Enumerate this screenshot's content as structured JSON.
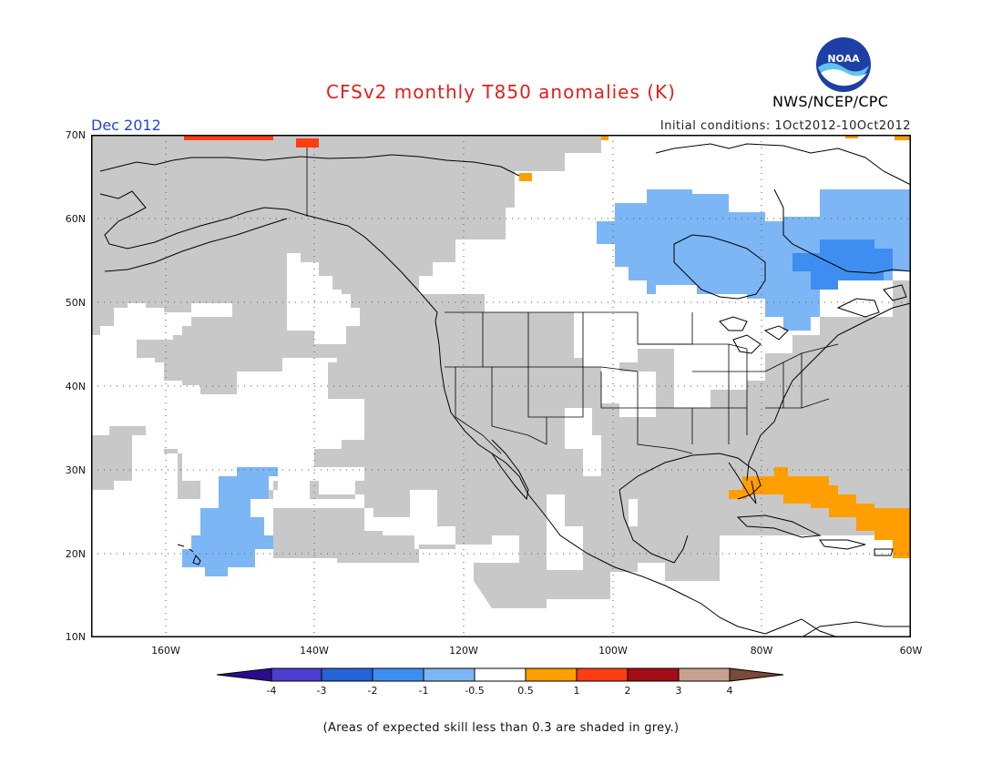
{
  "header": {
    "title": "CFSv2 monthly T850 anomalies (K)",
    "month": "Dec 2012",
    "initial_conditions": "Initial conditions: 1Oct2012-10Oct2012",
    "agency": "NWS/NCEP/CPC",
    "logo_text": "NOAA"
  },
  "axes": {
    "lat_labels": [
      "70N",
      "60N",
      "50N",
      "40N",
      "30N",
      "20N",
      "10N"
    ],
    "lon_labels": [
      "160W",
      "140W",
      "120W",
      "100W",
      "80W",
      "60W"
    ]
  },
  "colorbar": {
    "labels": [
      "-4",
      "-3",
      "-2",
      "-1",
      "-0.5",
      "0.5",
      "1",
      "2",
      "3",
      "4"
    ],
    "colors": [
      "#2a0d8c",
      "#4a3fcf",
      "#2464d8",
      "#3d8ef0",
      "#7db6f5",
      "#ffffff",
      "#ff9e00",
      "#ff3d12",
      "#a50d16",
      "#c9a08f",
      "#7a4a3a"
    ]
  },
  "colors": {
    "grey_low_skill": "#c8c8c8",
    "light_blue": "#7db6f5",
    "mid_blue": "#3d8ef0",
    "orange": "#ff9e00",
    "red_orange": "#ff3d12",
    "title_red": "#e0201b",
    "month_blue": "#2346d8"
  },
  "footnote": "(Areas of expected skill less than 0.3 are shaded in grey.)"
}
